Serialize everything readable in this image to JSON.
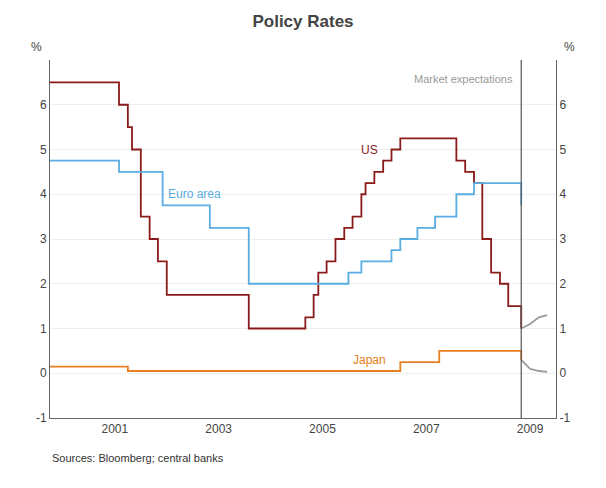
{
  "chart_data": {
    "type": "line",
    "title": "Policy Rates",
    "source": "Sources: Bloomberg; central banks",
    "ylabel": "%",
    "y2label": "%",
    "xlim": [
      1999.75,
      2009.5
    ],
    "xticks": [
      2001,
      2003,
      2005,
      2007,
      2009
    ],
    "ylim": [
      -1,
      7
    ],
    "yticks": [
      -1,
      0,
      1,
      2,
      3,
      4,
      5,
      6
    ],
    "y2lim": [
      -1,
      7
    ],
    "y2ticks": [
      -1,
      0,
      1,
      2,
      3,
      4,
      5,
      6
    ],
    "grid": "y",
    "vline": {
      "x": 2008.83,
      "color": "#555555"
    },
    "series": [
      {
        "name": "US",
        "color": "#8b1a1a",
        "line_style": "step",
        "x": [
          1999.75,
          2001.0,
          2001.08,
          2001.25,
          2001.33,
          2001.5,
          2001.67,
          2001.83,
          2002.0,
          2003.58,
          2004.58,
          2004.67,
          2004.83,
          2004.92,
          2005.08,
          2005.25,
          2005.42,
          2005.58,
          2005.75,
          2005.83,
          2006.0,
          2006.17,
          2006.33,
          2006.5,
          2007.0,
          2007.58,
          2007.75,
          2007.92,
          2008.08,
          2008.25,
          2008.42,
          2008.58,
          2008.83
        ],
        "values": [
          6.5,
          6.5,
          6.0,
          5.5,
          5.0,
          3.5,
          3.0,
          2.5,
          1.75,
          1.0,
          1.0,
          1.25,
          1.75,
          2.25,
          2.5,
          3.0,
          3.25,
          3.5,
          4.0,
          4.25,
          4.5,
          4.75,
          5.0,
          5.25,
          5.25,
          4.75,
          4.5,
          4.25,
          3.0,
          2.25,
          2.0,
          1.5,
          1.0
        ]
      },
      {
        "name": "Euro area",
        "color": "#5aade0",
        "line_style": "step",
        "x": [
          1999.75,
          2000.92,
          2001.08,
          2001.92,
          2002.83,
          2003.58,
          2005.17,
          2005.5,
          2005.75,
          2006.33,
          2006.5,
          2006.83,
          2007.17,
          2007.58,
          2007.92,
          2008.58,
          2008.83
        ],
        "values": [
          4.75,
          4.75,
          4.5,
          3.75,
          3.25,
          2.0,
          2.0,
          2.25,
          2.5,
          2.75,
          3.0,
          3.25,
          3.5,
          4.0,
          4.25,
          4.25,
          3.75
        ]
      },
      {
        "name": "Japan",
        "color": "#e88020",
        "line_style": "step",
        "x": [
          1999.75,
          2001.25,
          2006.33,
          2006.5,
          2007.25,
          2008.58,
          2008.83
        ],
        "values": [
          0.15,
          0.05,
          0.05,
          0.25,
          0.5,
          0.5,
          0.3
        ]
      },
      {
        "name": "Market expectations",
        "color": "#999999",
        "line_style": "solid",
        "x": [
          2008.83,
          2009.0,
          2009.17,
          2009.33
        ],
        "values": [
          1.0,
          1.1,
          1.25,
          1.3
        ]
      },
      {
        "color": "#999999",
        "line_style": "solid",
        "x": [
          2008.83,
          2009.0,
          2009.17,
          2009.33
        ],
        "values": [
          0.3,
          0.1,
          0.05,
          0.03
        ]
      }
    ]
  }
}
